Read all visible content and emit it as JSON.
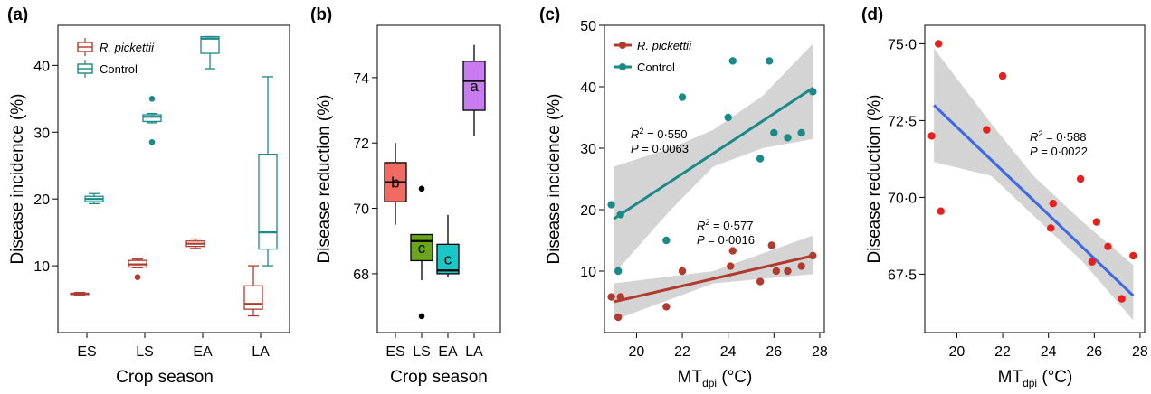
{
  "chart_data": [
    {
      "panel": "(a)",
      "type": "box",
      "xlabel": "Crop season",
      "ylabel": "Disease incidence (%)",
      "categories": [
        "ES",
        "LS",
        "EA",
        "LA"
      ],
      "yticks": [
        "10",
        "20",
        "30",
        "40"
      ],
      "ylim": [
        0,
        46
      ],
      "legend": [
        "R. pickettii",
        "Control"
      ],
      "series": [
        {
          "name": "R. pickettii",
          "color": "#b03a2e",
          "boxes": [
            {
              "min": 5.6,
              "q1": 5.7,
              "median": 5.8,
              "q3": 5.9,
              "max": 6.0,
              "outliers": []
            },
            {
              "min": 9.7,
              "q1": 9.8,
              "median": 10.2,
              "q3": 10.8,
              "max": 11.0,
              "outliers": [
                8.3
              ]
            },
            {
              "min": 12.6,
              "q1": 12.9,
              "median": 13.3,
              "q3": 13.7,
              "max": 14.0,
              "outliers": []
            },
            {
              "min": 2.5,
              "q1": 3.5,
              "median": 4.3,
              "q3": 7.0,
              "max": 10.0,
              "outliers": []
            }
          ]
        },
        {
          "name": "Control",
          "color": "#198a87",
          "boxes": [
            {
              "min": 19.3,
              "q1": 19.6,
              "median": 20.0,
              "q3": 20.4,
              "max": 20.8,
              "outliers": []
            },
            {
              "min": 31.4,
              "q1": 31.6,
              "median": 32.3,
              "q3": 32.6,
              "max": 32.8,
              "outliers": [
                35.0,
                28.5
              ]
            },
            {
              "min": 39.5,
              "q1": 41.8,
              "median": 44.0,
              "q3": 44.3,
              "max": 44.3,
              "outliers": []
            },
            {
              "min": 10.0,
              "q1": 12.5,
              "median": 15.0,
              "q3": 26.7,
              "max": 38.3,
              "outliers": []
            }
          ]
        }
      ]
    },
    {
      "panel": "(b)",
      "type": "box",
      "xlabel": "Crop season",
      "ylabel": "Disease reduction (%)",
      "categories": [
        "ES",
        "LS",
        "EA",
        "LA"
      ],
      "yticks": [
        "68",
        "70",
        "72",
        "74"
      ],
      "ylim": [
        66.2,
        75.6
      ],
      "boxes": [
        {
          "category": "ES",
          "color": "#f26b62",
          "letter": "b",
          "min": 69.5,
          "q1": 70.2,
          "median": 70.8,
          "q3": 71.4,
          "max": 72.0,
          "outliers": []
        },
        {
          "category": "LS",
          "color": "#6aa61a",
          "letter": "c",
          "min": 67.8,
          "q1": 68.4,
          "median": 69.0,
          "q3": 69.2,
          "max": 69.2,
          "outliers": [
            70.6,
            66.7
          ]
        },
        {
          "category": "EA",
          "color": "#1ac6c6",
          "letter": "c",
          "min": 67.9,
          "q1": 68.0,
          "median": 68.1,
          "q3": 68.9,
          "max": 69.8,
          "outliers": []
        },
        {
          "category": "LA",
          "color": "#c77cf0",
          "letter": "a",
          "min": 72.2,
          "q1": 73.0,
          "median": 73.9,
          "q3": 74.5,
          "max": 75.0,
          "outliers": []
        }
      ]
    },
    {
      "panel": "(c)",
      "type": "scatter",
      "xlabel_main": "MT",
      "xlabel_sub": "dpi",
      "xlabel_unit": " (°C)",
      "ylabel": "Disease incidence (%)",
      "xticks": [
        "20",
        "22",
        "24",
        "26",
        "28"
      ],
      "yticks": [
        "10",
        "20",
        "30",
        "40",
        "50"
      ],
      "xlim": [
        18.6,
        28.2
      ],
      "ylim": [
        0,
        50
      ],
      "legend": [
        "R. pickettii",
        "Control"
      ],
      "series": [
        {
          "name": "R. pickettii",
          "color": "#b03a2e",
          "points": [
            [
              18.9,
              5.8
            ],
            [
              19.2,
              2.5
            ],
            [
              19.3,
              5.8
            ],
            [
              21.3,
              4.2
            ],
            [
              22.0,
              10.0
            ],
            [
              24.1,
              10.8
            ],
            [
              24.2,
              13.3
            ],
            [
              25.4,
              8.3
            ],
            [
              25.9,
              14.2
            ],
            [
              26.1,
              10.0
            ],
            [
              26.6,
              10.0
            ],
            [
              27.2,
              10.8
            ],
            [
              27.7,
              12.5
            ]
          ],
          "fit": [
            [
              19.0,
              5.0
            ],
            [
              27.7,
              12.5
            ]
          ],
          "band_lo": [
            [
              19.0,
              2.0
            ],
            [
              23.35,
              8.0
            ],
            [
              27.7,
              9.5
            ]
          ],
          "band_hi": [
            [
              19.0,
              8.0
            ],
            [
              23.35,
              10.0
            ],
            [
              27.7,
              15.8
            ]
          ],
          "stat_r2": " = 0·577",
          "stat_p": " = 0·0016"
        },
        {
          "name": "Control",
          "color": "#198a87",
          "points": [
            [
              18.9,
              20.8
            ],
            [
              19.2,
              10.0
            ],
            [
              19.3,
              19.2
            ],
            [
              21.3,
              15.0
            ],
            [
              22.0,
              38.3
            ],
            [
              24.0,
              35.0
            ],
            [
              24.2,
              44.2
            ],
            [
              25.4,
              28.3
            ],
            [
              25.8,
              44.2
            ],
            [
              26.0,
              32.5
            ],
            [
              26.6,
              31.7
            ],
            [
              27.2,
              32.5
            ],
            [
              27.7,
              39.2
            ]
          ],
          "fit": [
            [
              19.0,
              18.5
            ],
            [
              27.7,
              39.8
            ]
          ],
          "band_lo": [
            [
              19.0,
              9.5
            ],
            [
              21.5,
              20.0
            ],
            [
              23.35,
              27.0
            ],
            [
              25.5,
              30.0
            ],
            [
              27.7,
              31.5
            ]
          ],
          "band_hi": [
            [
              19.0,
              27.0
            ],
            [
              21.5,
              30.0
            ],
            [
              23.35,
              33.0
            ],
            [
              25.5,
              38.5
            ],
            [
              27.7,
              47.0
            ]
          ],
          "stat_r2": " = 0·550",
          "stat_p": " = 0·0063"
        }
      ]
    },
    {
      "panel": "(d)",
      "type": "scatter",
      "xlabel_main": "MT",
      "xlabel_sub": "dpi",
      "xlabel_unit": " (°C)",
      "ylabel": "Disease reduction (%)",
      "xticks": [
        "20",
        "22",
        "24",
        "26",
        "28"
      ],
      "yticks": [
        "67·5",
        "70·0",
        "72·5",
        "75·0"
      ],
      "xlim": [
        18.6,
        28.2
      ],
      "ylim": [
        65.6,
        75.6
      ],
      "series": [
        {
          "name": "",
          "color": "#e8201c",
          "points": [
            [
              18.9,
              72.0
            ],
            [
              19.2,
              75.0
            ],
            [
              19.3,
              69.55
            ],
            [
              21.3,
              72.2
            ],
            [
              22.0,
              73.95
            ],
            [
              24.1,
              69.0
            ],
            [
              24.2,
              69.8
            ],
            [
              25.4,
              70.6
            ],
            [
              25.9,
              67.9
            ],
            [
              26.1,
              69.2
            ],
            [
              26.6,
              68.4
            ],
            [
              27.2,
              66.7
            ],
            [
              27.7,
              68.1
            ]
          ],
          "fit": [
            [
              19.0,
              73.0
            ],
            [
              27.7,
              66.8
            ]
          ],
          "band_lo": [
            [
              19.0,
              71.15
            ],
            [
              21.5,
              70.7
            ],
            [
              23.35,
              69.4
            ],
            [
              25.5,
              67.9
            ],
            [
              27.7,
              66.0
            ]
          ],
          "band_hi": [
            [
              19.0,
              74.85
            ],
            [
              21.5,
              72.4
            ],
            [
              23.35,
              70.7
            ],
            [
              25.5,
              69.2
            ],
            [
              27.7,
              67.8
            ]
          ],
          "fit_color": "#3a68e8",
          "stat_r2": " = 0·588",
          "stat_p": " = 0·0022"
        }
      ]
    }
  ]
}
